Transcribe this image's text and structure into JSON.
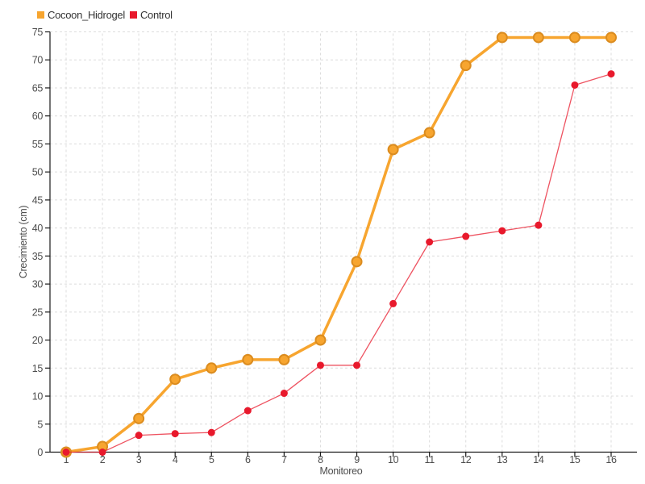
{
  "chart_data": {
    "type": "line",
    "title": "",
    "xlabel": "Monitoreo",
    "ylabel": "Crecimiento (cm)",
    "x": [
      1,
      2,
      3,
      4,
      5,
      6,
      7,
      8,
      9,
      10,
      11,
      12,
      13,
      14,
      15,
      16
    ],
    "ylim": [
      0,
      75
    ],
    "yticks": [
      0,
      5,
      10,
      15,
      20,
      25,
      30,
      35,
      40,
      45,
      50,
      55,
      60,
      65,
      70,
      75
    ],
    "grid": "dashed",
    "legend_position": "top-left",
    "series": [
      {
        "name": "Cocoon_Hidrogel",
        "color": "#F7A52F",
        "marker_stroke": "#DB8C1F",
        "line_width": 3.5,
        "line_opacity": 1,
        "marker_radius": 6,
        "values": [
          0,
          1,
          6,
          13,
          15,
          16.5,
          16.5,
          20,
          34,
          54,
          57,
          69,
          74,
          74,
          74,
          74
        ]
      },
      {
        "name": "Control",
        "color": "#E8192C",
        "marker_stroke": "#E8192C",
        "line_width": 1.3,
        "line_opacity": 0.75,
        "marker_radius": 4.5,
        "values": [
          0,
          0,
          3,
          3.3,
          3.5,
          7.4,
          10.5,
          15.5,
          15.5,
          26.5,
          37.5,
          38.5,
          39.5,
          40.5,
          65.5,
          67.5
        ]
      }
    ],
    "colors": {
      "background": "#ffffff",
      "gridline": "#dcdcdc",
      "axis": "#1a1a1a",
      "tick_label": "#4d4d4d",
      "axis_label": "#4d4d4d"
    }
  }
}
